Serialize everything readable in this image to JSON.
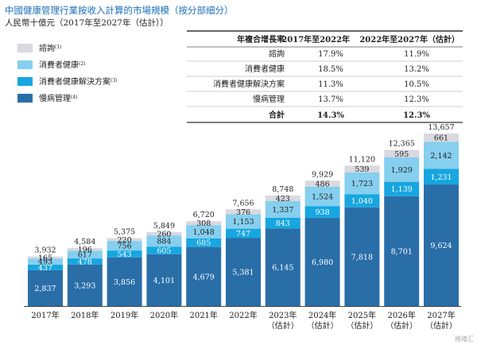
{
  "header": {
    "title": "中國健康管理行業按收入計算的市場規模（按分部細分）",
    "subtitle": "人民幣十億元（2017年至2027年（估計））"
  },
  "legend": [
    {
      "label": "諮詢",
      "note": "(1)",
      "color": "#d9d9df"
    },
    {
      "label": "消費者健康",
      "note": "(2)",
      "color": "#86cfee"
    },
    {
      "label": "消費者健康解決方案",
      "note": "(3)",
      "color": "#17a6e0"
    },
    {
      "label": "慢病管理",
      "note": "(4)",
      "color": "#2a6ea8"
    }
  ],
  "cagr_table": {
    "headers": [
      "年複合增長率",
      "2017年至2022年",
      "2022年至2027年（估計）"
    ],
    "rows": [
      [
        "諮詢",
        "17.9%",
        "11.9%"
      ],
      [
        "消費者健康",
        "18.5%",
        "13.2%"
      ],
      [
        "消費者健康解決方案",
        "11.3%",
        "10.5%"
      ],
      [
        "慢病管理",
        "13.7%",
        "12.3%"
      ]
    ],
    "total_row": [
      "合計",
      "14.3%",
      "12.3%"
    ]
  },
  "chart_data": {
    "type": "bar",
    "stacked": true,
    "title": "中國健康管理行業按收入計算的市場規模（按分部細分）",
    "ylabel": "人民幣十億元（2017年至2027年（估計））",
    "categories": [
      "2017年",
      "2018年",
      "2019年",
      "2020年",
      "2021年",
      "2022年",
      "2023年\n（估計）",
      "2024年\n（估計）",
      "2025年\n（估計）",
      "2026年\n（估計）",
      "2027年\n（估計）"
    ],
    "series": [
      {
        "name": "慢病管理",
        "values": [
          2837,
          3293,
          3856,
          4101,
          4679,
          5381,
          6145,
          6980,
          7818,
          8701,
          9624
        ]
      },
      {
        "name": "消費者健康解決方案",
        "values": [
          437,
          478,
          543,
          605,
          685,
          747,
          843,
          938,
          1040,
          1139,
          1231
        ]
      },
      {
        "name": "消費者健康",
        "values": [
          493,
          617,
          756,
          884,
          1048,
          1153,
          1337,
          1524,
          1723,
          1929,
          2142
        ]
      },
      {
        "name": "諮詢",
        "values": [
          165,
          196,
          220,
          260,
          308,
          376,
          423,
          486,
          539,
          595,
          661
        ]
      }
    ],
    "totals": [
      "3,932",
      "4,584",
      "5,375",
      "5,849",
      "6,720",
      "7,656",
      "8,748",
      "9,929",
      "11,120",
      "12,365",
      "13,657"
    ],
    "colors": {
      "慢病管理": "#2a6ea8",
      "消費者健康解決方案": "#17a6e0",
      "消費者健康": "#86cfee",
      "諮詢": "#d9d9df"
    },
    "ylim": [
      0,
      14000
    ],
    "grid": false,
    "legend_position": "top-left"
  },
  "watermark": "格隆汇"
}
